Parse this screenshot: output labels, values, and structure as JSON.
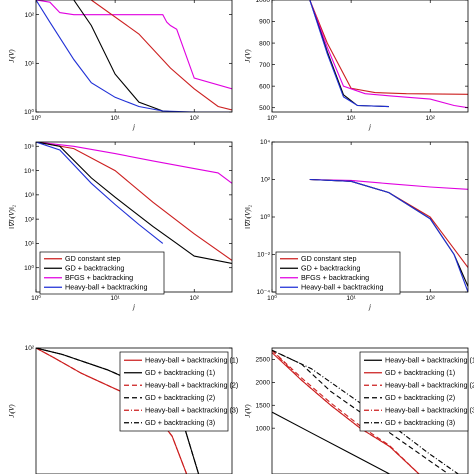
{
  "colors": {
    "red": "#cc1f1f",
    "black": "#000000",
    "magenta": "#e000e0",
    "blue": "#1f2fd6"
  },
  "chart_data": [
    {
      "id": "p1",
      "type": "line",
      "title": "",
      "xlabel": "j",
      "ylabel": "Jₗ(V)",
      "xscale": "log",
      "yscale": "log",
      "xlim": [
        1,
        300
      ],
      "ylim": [
        1,
        200
      ],
      "xticks": [
        {
          "v": 1,
          "t": "10⁰"
        },
        {
          "v": 10,
          "t": "10¹"
        },
        {
          "v": 100,
          "t": "10²"
        }
      ],
      "yticks": [
        {
          "v": 1,
          "t": "10⁰"
        },
        {
          "v": 10,
          "t": "10¹"
        },
        {
          "v": 100,
          "t": "10²"
        }
      ],
      "series": [
        {
          "color": "magenta",
          "dash": "",
          "x": [
            1,
            1.5,
            2,
            3,
            10,
            25,
            40,
            45,
            50,
            60,
            100,
            300
          ],
          "y": [
            200,
            180,
            110,
            100,
            100,
            100,
            100,
            70,
            60,
            50,
            5,
            3
          ]
        },
        {
          "color": "red",
          "dash": "",
          "x": [
            5,
            20,
            50,
            100,
            200,
            300
          ],
          "y": [
            200,
            40,
            8,
            3,
            1.3,
            1.1
          ]
        },
        {
          "color": "black",
          "dash": "",
          "x": [
            3,
            5,
            10,
            20,
            40,
            60
          ],
          "y": [
            200,
            60,
            6,
            1.6,
            1.05,
            1.0
          ]
        },
        {
          "color": "blue",
          "dash": "",
          "x": [
            1,
            1.5,
            3,
            5,
            10,
            20,
            40,
            100,
            300
          ],
          "y": [
            200,
            70,
            12,
            4,
            2,
            1.3,
            1.05,
            1.0,
            1.0
          ]
        }
      ],
      "legend": {
        "entries": [],
        "position": "top-right"
      }
    },
    {
      "id": "p2",
      "type": "line",
      "title": "",
      "xlabel": "j",
      "ylabel": "Jₗ(V)",
      "xscale": "log",
      "yscale": "linear",
      "xlim": [
        1,
        300
      ],
      "ylim": [
        480,
        1000
      ],
      "xticks": [
        {
          "v": 1,
          "t": "10⁰"
        },
        {
          "v": 10,
          "t": "10¹"
        },
        {
          "v": 100,
          "t": "10²"
        }
      ],
      "yticks": [
        {
          "v": 500,
          "t": "500"
        },
        {
          "v": 600,
          "t": "600"
        },
        {
          "v": 700,
          "t": "700"
        },
        {
          "v": 800,
          "t": "800"
        },
        {
          "v": 900,
          "t": "900"
        },
        {
          "v": 1000,
          "t": "1000"
        }
      ],
      "series": [
        {
          "color": "red",
          "dash": "",
          "x": [
            3,
            5,
            10,
            20,
            50,
            300
          ],
          "y": [
            1000,
            800,
            590,
            570,
            565,
            562
          ]
        },
        {
          "color": "magenta",
          "dash": "",
          "x": [
            3,
            5,
            8,
            15,
            30,
            100,
            200,
            300
          ],
          "y": [
            1000,
            780,
            600,
            565,
            555,
            540,
            510,
            500
          ]
        },
        {
          "color": "black",
          "dash": "",
          "x": [
            3,
            5,
            8,
            12,
            30
          ],
          "y": [
            1000,
            760,
            560,
            510,
            505
          ]
        },
        {
          "color": "blue",
          "dash": "",
          "x": [
            3,
            5,
            8,
            12,
            30
          ],
          "y": [
            1000,
            750,
            550,
            510,
            505
          ]
        }
      ],
      "legend": {
        "entries": [],
        "position": "top-right"
      }
    },
    {
      "id": "p3",
      "type": "line",
      "title": "",
      "xlabel": "j",
      "ylabel": "‖∇Jₗ(V)‖₂",
      "xscale": "log",
      "yscale": "log",
      "xlim": [
        1,
        300
      ],
      "ylim": [
        0.1,
        150000
      ],
      "xticks": [
        {
          "v": 1,
          "t": "10⁰"
        },
        {
          "v": 10,
          "t": "10¹"
        },
        {
          "v": 100,
          "t": "10²"
        }
      ],
      "yticks": [
        {
          "v": 1,
          "t": "10⁰"
        },
        {
          "v": 10,
          "t": "10¹"
        },
        {
          "v": 100,
          "t": "10²"
        },
        {
          "v": 1000,
          "t": "10³"
        },
        {
          "v": 10000,
          "t": "10⁴"
        },
        {
          "v": 100000,
          "t": "10⁵"
        }
      ],
      "series": [
        {
          "color": "magenta",
          "dash": "",
          "x": [
            1,
            3,
            10,
            30,
            100,
            200,
            300
          ],
          "y": [
            150000,
            100000,
            50000,
            25000,
            12000,
            8000,
            3000
          ]
        },
        {
          "color": "red",
          "dash": "",
          "x": [
            1,
            3,
            10,
            30,
            100,
            300
          ],
          "y": [
            150000,
            80000,
            10000,
            500,
            25,
            2
          ]
        },
        {
          "color": "black",
          "dash": "",
          "x": [
            1,
            2,
            5,
            10,
            30,
            60,
            100,
            300
          ],
          "y": [
            150000,
            100000,
            5000,
            800,
            50,
            10,
            3,
            1.5
          ]
        },
        {
          "color": "blue",
          "dash": "",
          "x": [
            1,
            2,
            5,
            10,
            20,
            40
          ],
          "y": [
            150000,
            70000,
            3000,
            400,
            60,
            10
          ]
        }
      ],
      "legend": {
        "entries": [
          {
            "label": "GD constant step",
            "color": "red"
          },
          {
            "label": "GD + backtracking",
            "color": "black"
          },
          {
            "label": "BFGS + backtracking",
            "color": "magenta"
          },
          {
            "label": "Heavy-ball + backtracking",
            "color": "blue"
          }
        ],
        "position": "bottom-left"
      }
    },
    {
      "id": "p4",
      "type": "line",
      "title": "",
      "xlabel": "j",
      "ylabel": "‖∇Jₗ(V)‖₂",
      "xscale": "log",
      "yscale": "log",
      "xlim": [
        1,
        300
      ],
      "ylim": [
        0.0001,
        10000
      ],
      "xticks": [
        {
          "v": 1,
          "t": "10⁰"
        },
        {
          "v": 10,
          "t": "10¹"
        },
        {
          "v": 100,
          "t": "10²"
        }
      ],
      "yticks": [
        {
          "v": 0.0001,
          "t": "10⁻⁴"
        },
        {
          "v": 0.01,
          "t": "10⁻²"
        },
        {
          "v": 1,
          "t": "10⁰"
        },
        {
          "v": 100,
          "t": "10²"
        },
        {
          "v": 10000,
          "t": "10⁴"
        }
      ],
      "series": [
        {
          "color": "magenta",
          "dash": "",
          "x": [
            3,
            10,
            30,
            100,
            300
          ],
          "y": [
            100,
            90,
            60,
            40,
            30
          ]
        },
        {
          "color": "red",
          "dash": "",
          "x": [
            3,
            10,
            30,
            100,
            200,
            300
          ],
          "y": [
            100,
            80,
            20,
            1,
            0.02,
            0.002
          ]
        },
        {
          "color": "black",
          "dash": "",
          "x": [
            3,
            10,
            30,
            100,
            200,
            300
          ],
          "y": [
            100,
            80,
            20,
            0.8,
            0.01,
            0.0002
          ]
        },
        {
          "color": "blue",
          "dash": "",
          "x": [
            3,
            10,
            30,
            100,
            200,
            300
          ],
          "y": [
            100,
            80,
            20,
            0.8,
            0.01,
            0.0001
          ]
        }
      ],
      "legend": {
        "entries": [
          {
            "label": "GD constant step",
            "color": "red"
          },
          {
            "label": "GD + backtracking",
            "color": "black"
          },
          {
            "label": "BFGS + backtracking",
            "color": "magenta"
          },
          {
            "label": "Heavy-ball + backtracking",
            "color": "blue"
          }
        ],
        "position": "bottom-left"
      }
    },
    {
      "id": "p5",
      "type": "line",
      "title": "",
      "xlabel": "",
      "ylabel": "Jₗ(V)",
      "xscale": "log",
      "yscale": "log",
      "xlim": [
        1,
        20
      ],
      "ylim": [
        0.1,
        100
      ],
      "xticks": [],
      "yticks": [
        {
          "v": 100,
          "t": "10²"
        }
      ],
      "series": [
        {
          "color": "red",
          "dash": "",
          "x": [
            1,
            1.3,
            2,
            4,
            6,
            8,
            10
          ],
          "y": [
            100,
            60,
            25,
            8,
            3,
            0.8,
            0.1
          ]
        },
        {
          "color": "black",
          "dash": "",
          "x": [
            1,
            1.5,
            3,
            6,
            9,
            12
          ],
          "y": [
            100,
            70,
            30,
            10,
            3,
            0.1
          ]
        },
        {
          "color": "red",
          "dash": "5 3",
          "x": [
            1,
            1.3,
            2,
            4,
            6,
            8,
            10
          ],
          "y": [
            100,
            60,
            25,
            8,
            3,
            0.8,
            0.1
          ]
        },
        {
          "color": "black",
          "dash": "5 3",
          "x": [
            1,
            1.5,
            3,
            6,
            9,
            12
          ],
          "y": [
            100,
            70,
            30,
            10,
            3,
            0.1
          ]
        },
        {
          "color": "red",
          "dash": "5 2 1 2",
          "x": [
            1,
            1.3,
            2,
            4,
            6,
            8,
            10
          ],
          "y": [
            100,
            60,
            25,
            8,
            3,
            0.8,
            0.1
          ]
        },
        {
          "color": "black",
          "dash": "5 2 1 2",
          "x": [
            1,
            1.5,
            3,
            6,
            9,
            12
          ],
          "y": [
            100,
            70,
            30,
            10,
            3,
            0.1
          ]
        }
      ],
      "legend": {
        "entries": [
          {
            "label": "Heavy-ball + backtracking (1)",
            "color": "red",
            "dash": ""
          },
          {
            "label": "GD + backtracking (1)",
            "color": "black",
            "dash": ""
          },
          {
            "label": "Heavy-ball + backtracking (2)",
            "color": "red",
            "dash": "5 3"
          },
          {
            "label": "GD + backtracking (2)",
            "color": "black",
            "dash": "5 3"
          },
          {
            "label": "Heavy-ball + backtracking (3)",
            "color": "red",
            "dash": "5 2 1 2"
          },
          {
            "label": "GD + backtracking (3)",
            "color": "black",
            "dash": "5 2 1 2"
          }
        ],
        "position": "top-right"
      }
    },
    {
      "id": "p6",
      "type": "line",
      "title": "",
      "xlabel": "",
      "ylabel": "Jₗ(V)",
      "xscale": "linear",
      "yscale": "linear",
      "xlim": [
        0,
        200
      ],
      "ylim": [
        0,
        2750
      ],
      "xticks": [],
      "yticks": [
        {
          "v": 1000,
          "t": "1000"
        },
        {
          "v": 1500,
          "t": "1500"
        },
        {
          "v": 2000,
          "t": "2000"
        },
        {
          "v": 2500,
          "t": "2500"
        }
      ],
      "series": [
        {
          "color": "black",
          "dash": "",
          "x": [
            0,
            40,
            80,
            120
          ],
          "y": [
            1350,
            900,
            450,
            0
          ]
        },
        {
          "color": "red",
          "dash": "",
          "x": [
            0,
            30,
            60,
            90,
            120,
            150
          ],
          "y": [
            2650,
            2050,
            1500,
            1000,
            600,
            0
          ]
        },
        {
          "color": "red",
          "dash": "5 3",
          "x": [
            0,
            30,
            60,
            90,
            120,
            150
          ],
          "y": [
            2700,
            2100,
            1550,
            1050,
            620,
            0
          ]
        },
        {
          "color": "black",
          "dash": "5 3",
          "x": [
            0,
            30,
            60,
            100,
            140,
            180
          ],
          "y": [
            2700,
            2400,
            1800,
            1200,
            600,
            0
          ]
        },
        {
          "color": "red",
          "dash": "5 2 1 2",
          "x": [
            0,
            30,
            60,
            90,
            120,
            150
          ],
          "y": [
            2700,
            2050,
            1500,
            1000,
            600,
            0
          ]
        },
        {
          "color": "black",
          "dash": "5 2 1 2",
          "x": [
            0,
            40,
            80,
            120,
            160,
            190
          ],
          "y": [
            2700,
            2300,
            1700,
            1100,
            450,
            0
          ]
        }
      ],
      "legend": {
        "entries": [
          {
            "label": "Heavy-ball + backtracking (1)",
            "color": "black",
            "dash": ""
          },
          {
            "label": "GD + backtracking (1)",
            "color": "red",
            "dash": ""
          },
          {
            "label": "Heavy-ball + backtracking (2)",
            "color": "red",
            "dash": "5 3"
          },
          {
            "label": "GD + backtracking (2)",
            "color": "black",
            "dash": "5 3"
          },
          {
            "label": "Heavy-ball + backtracking (3)",
            "color": "red",
            "dash": "5 2 1 2"
          },
          {
            "label": "GD + backtracking (3)",
            "color": "black",
            "dash": "5 2 1 2"
          }
        ],
        "position": "top-right"
      }
    }
  ]
}
